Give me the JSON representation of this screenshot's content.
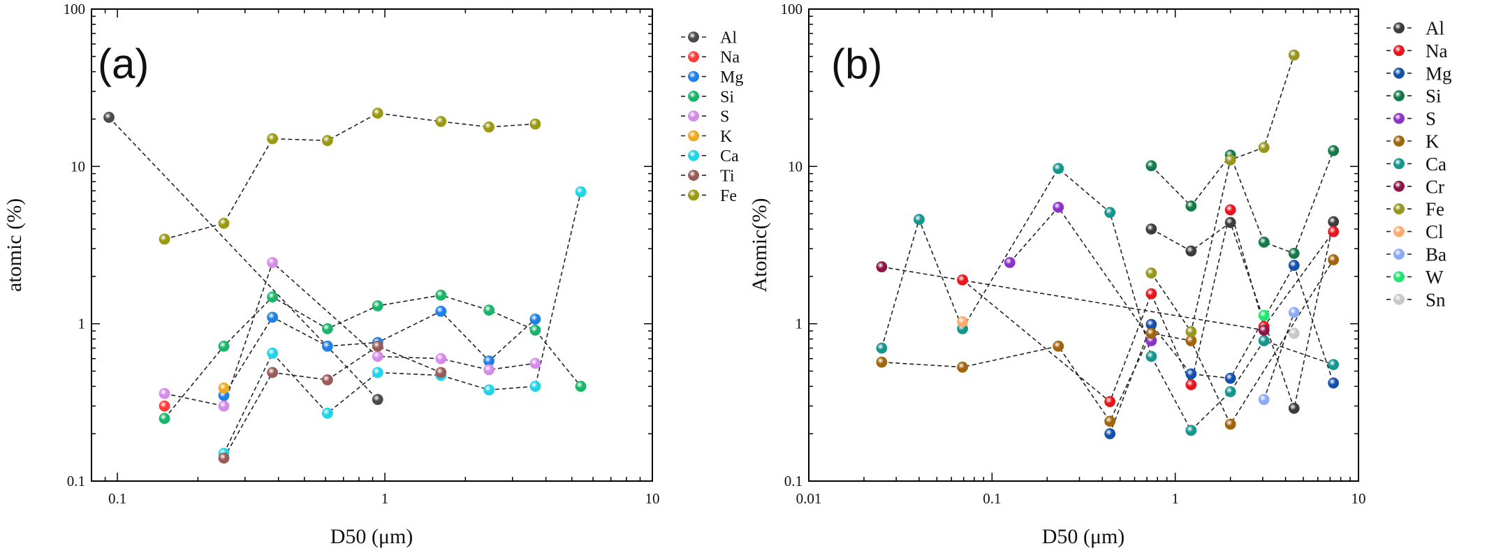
{
  "chart_data": [
    {
      "type": "scatter",
      "panel_label": "(a)",
      "xlabel": "D50 (μm)",
      "ylabel": "atomic (%)",
      "xscale": "log",
      "yscale": "log",
      "xlim": [
        0.08,
        10
      ],
      "ylim": [
        0.1,
        100
      ],
      "x_ticks": [
        0.1,
        1,
        10
      ],
      "x_tick_labels": [
        "0.1",
        "1",
        "10"
      ],
      "y_ticks": [
        0.1,
        1,
        10,
        100
      ],
      "y_tick_labels": [
        "0.1",
        "1",
        "10",
        "100"
      ],
      "grid": false,
      "legend_position": "right",
      "series": [
        {
          "name": "Al",
          "color": "#4a4a4a",
          "points": [
            [
              0.093,
              20.5
            ],
            [
              0.94,
              0.33
            ]
          ]
        },
        {
          "name": "Na",
          "color": "#ff3b3b",
          "points": [
            [
              0.15,
              0.3
            ]
          ]
        },
        {
          "name": "Mg",
          "color": "#1f7fe6",
          "points": [
            [
              0.25,
              0.35
            ],
            [
              0.38,
              1.1
            ],
            [
              0.61,
              0.72
            ],
            [
              0.94,
              0.76
            ],
            [
              1.62,
              1.2
            ],
            [
              2.45,
              0.58
            ],
            [
              3.65,
              1.07
            ]
          ]
        },
        {
          "name": "Si",
          "color": "#19b56a",
          "points": [
            [
              0.15,
              0.25
            ],
            [
              0.25,
              0.72
            ],
            [
              0.38,
              1.48
            ],
            [
              0.61,
              0.93
            ],
            [
              0.94,
              1.3
            ],
            [
              1.62,
              1.52
            ],
            [
              2.45,
              1.22
            ],
            [
              3.65,
              0.91
            ],
            [
              5.4,
              0.4
            ]
          ]
        },
        {
          "name": "S",
          "color": "#d58ce8",
          "points": [
            [
              0.15,
              0.36
            ],
            [
              0.25,
              0.3
            ],
            [
              0.38,
              2.45
            ],
            [
              0.94,
              0.62
            ],
            [
              1.62,
              0.6
            ],
            [
              2.45,
              0.51
            ],
            [
              3.65,
              0.56
            ]
          ]
        },
        {
          "name": "K",
          "color": "#f0a81e",
          "points": [
            [
              0.25,
              0.39
            ]
          ]
        },
        {
          "name": "Ca",
          "color": "#1ed4e8",
          "points": [
            [
              0.25,
              0.15
            ],
            [
              0.38,
              0.65
            ],
            [
              0.61,
              0.27
            ],
            [
              0.94,
              0.49
            ],
            [
              1.62,
              0.47
            ],
            [
              2.45,
              0.38
            ],
            [
              3.65,
              0.4
            ],
            [
              5.4,
              6.9
            ]
          ]
        },
        {
          "name": "Ti",
          "color": "#9a5a55",
          "points": [
            [
              0.25,
              0.14
            ],
            [
              0.38,
              0.49
            ],
            [
              0.61,
              0.44
            ],
            [
              0.94,
              0.72
            ],
            [
              1.62,
              0.49
            ]
          ]
        },
        {
          "name": "Fe",
          "color": "#9a9a12",
          "points": [
            [
              0.15,
              3.45
            ],
            [
              0.25,
              4.35
            ],
            [
              0.38,
              15.0
            ],
            [
              0.61,
              14.6
            ],
            [
              0.94,
              21.8
            ],
            [
              1.62,
              19.3
            ],
            [
              2.45,
              17.8
            ],
            [
              3.65,
              18.6
            ]
          ]
        }
      ]
    },
    {
      "type": "scatter",
      "panel_label": "(b)",
      "xlabel": "D50 (μm)",
      "ylabel": "Atomic(%)",
      "xscale": "log",
      "yscale": "log",
      "xlim": [
        0.01,
        10
      ],
      "ylim": [
        0.1,
        100
      ],
      "x_ticks": [
        0.01,
        0.1,
        1,
        10
      ],
      "x_tick_labels": [
        "0.01",
        "0.1",
        "1",
        "10"
      ],
      "y_ticks": [
        0.1,
        1,
        10,
        100
      ],
      "y_tick_labels": [
        "0.1",
        "1",
        "10",
        "100"
      ],
      "grid": false,
      "legend_position": "right",
      "series": [
        {
          "name": "Al",
          "color": "#3c3c3c",
          "points": [
            [
              0.74,
              4.0
            ],
            [
              1.22,
              2.9
            ],
            [
              2.0,
              4.4
            ],
            [
              4.45,
              0.29
            ],
            [
              7.3,
              4.45
            ]
          ]
        },
        {
          "name": "Na",
          "color": "#e8141e",
          "points": [
            [
              0.069,
              1.9
            ],
            [
              0.44,
              0.32
            ],
            [
              0.74,
              1.55
            ],
            [
              1.22,
              0.41
            ],
            [
              2.0,
              5.3
            ],
            [
              3.05,
              0.96
            ],
            [
              7.3,
              3.85
            ]
          ]
        },
        {
          "name": "Mg",
          "color": "#1450aa",
          "points": [
            [
              0.44,
              0.2
            ],
            [
              0.74,
              0.99
            ],
            [
              1.22,
              0.48
            ],
            [
              2.0,
              0.45
            ],
            [
              4.45,
              2.35
            ],
            [
              7.3,
              0.42
            ]
          ]
        },
        {
          "name": "Si",
          "color": "#147a4a",
          "points": [
            [
              0.74,
              10.1
            ],
            [
              1.22,
              5.6
            ],
            [
              2.0,
              11.8
            ],
            [
              3.05,
              3.3
            ],
            [
              4.45,
              2.8
            ],
            [
              7.3,
              12.6
            ]
          ]
        },
        {
          "name": "S",
          "color": "#8c32c8",
          "points": [
            [
              0.125,
              2.45
            ],
            [
              0.23,
              5.5
            ],
            [
              0.74,
              0.78
            ]
          ]
        },
        {
          "name": "K",
          "color": "#a0640a",
          "points": [
            [
              0.025,
              0.57
            ],
            [
              0.069,
              0.53
            ],
            [
              0.23,
              0.72
            ],
            [
              0.44,
              0.24
            ],
            [
              0.74,
              0.87
            ],
            [
              1.22,
              0.78
            ],
            [
              2.0,
              0.23
            ],
            [
              7.3,
              2.55
            ]
          ]
        },
        {
          "name": "Ca",
          "color": "#14968c",
          "points": [
            [
              0.025,
              0.7
            ],
            [
              0.04,
              4.6
            ],
            [
              0.069,
              0.93
            ],
            [
              0.23,
              9.7
            ],
            [
              0.44,
              5.1
            ],
            [
              0.74,
              0.62
            ],
            [
              1.22,
              0.21
            ],
            [
              2.0,
              0.37
            ],
            [
              3.05,
              0.78
            ],
            [
              7.3,
              0.55
            ]
          ]
        },
        {
          "name": "Cr",
          "color": "#8c1446",
          "points": [
            [
              0.025,
              2.3
            ],
            [
              3.05,
              0.91
            ]
          ]
        },
        {
          "name": "Fe",
          "color": "#96961e",
          "points": [
            [
              0.74,
              2.1
            ],
            [
              1.22,
              0.89
            ],
            [
              2.0,
              11.0
            ],
            [
              3.05,
              13.2
            ],
            [
              4.45,
              51.0
            ]
          ]
        },
        {
          "name": "Cl",
          "color": "#ffaa6e",
          "points": [
            [
              0.069,
              1.03
            ]
          ]
        },
        {
          "name": "Ba",
          "color": "#8caaf5",
          "points": [
            [
              3.05,
              0.33
            ],
            [
              4.45,
              1.18
            ]
          ]
        },
        {
          "name": "W",
          "color": "#1ee66e",
          "points": [
            [
              3.05,
              1.13
            ]
          ]
        },
        {
          "name": "Sn",
          "color": "#c8c8c8",
          "points": [
            [
              4.45,
              0.87
            ]
          ]
        }
      ]
    }
  ]
}
